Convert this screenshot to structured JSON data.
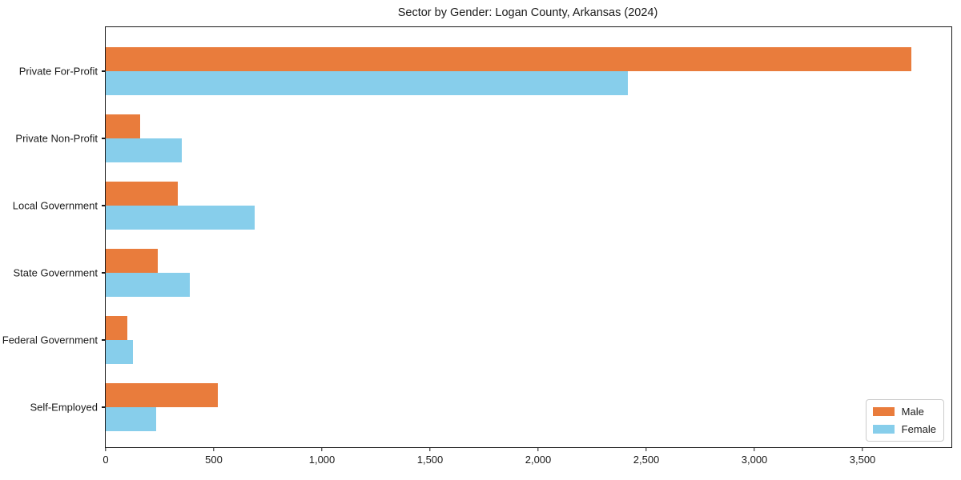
{
  "title": "Sector by Gender: Logan County, Arkansas (2024)",
  "chart_data": {
    "type": "bar",
    "orientation": "horizontal",
    "title": "Sector by Gender: Logan County, Arkansas (2024)",
    "xlabel": "",
    "ylabel": "",
    "grid": false,
    "categories": [
      "Private For-Profit",
      "Private Non-Profit",
      "Local Government",
      "State Government",
      "Federal Government",
      "Self-Employed"
    ],
    "series": [
      {
        "name": "Male",
        "color": "#E97C3C",
        "values": [
          3725,
          160,
          335,
          240,
          100,
          520
        ]
      },
      {
        "name": "Female",
        "color": "#87CEEB",
        "values": [
          2415,
          350,
          690,
          390,
          125,
          235
        ]
      }
    ],
    "xlim": [
      0,
      3911
    ],
    "xticks": [
      0,
      500,
      1000,
      1500,
      2000,
      2500,
      3000,
      3500
    ],
    "xtick_labels": [
      "0",
      "500",
      "1,000",
      "1,500",
      "2,000",
      "2,500",
      "3,000",
      "3,500"
    ],
    "legend": {
      "position": "lower right",
      "items": [
        "Male",
        "Female"
      ]
    }
  },
  "colors": {
    "background": "#ffffff",
    "text": "#1a1a1a",
    "spine": "#1a1a1a",
    "legend_border": "#cccccc"
  }
}
